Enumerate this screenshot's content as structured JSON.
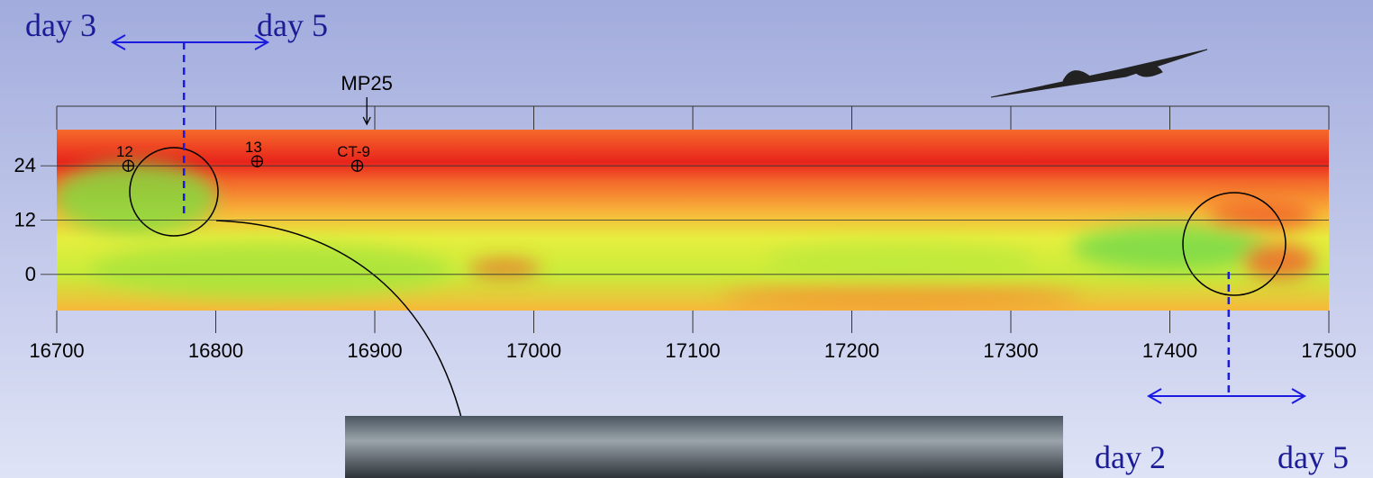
{
  "chart_data": {
    "type": "heatmap",
    "xlim": [
      16700,
      17500
    ],
    "xticks": [
      16700,
      16800,
      16900,
      17000,
      17100,
      17200,
      17300,
      17400,
      17500
    ],
    "ylim": [
      -8,
      32
    ],
    "yticks": [
      0,
      12,
      24
    ],
    "markers": [
      {
        "label": "12",
        "x": 16745,
        "y": 24
      },
      {
        "label": "13",
        "x": 16826,
        "y": 25
      },
      {
        "label": "CT-9",
        "x": 16889,
        "y": 24
      }
    ],
    "top_label": {
      "text": "MP25",
      "x": 16895
    },
    "ranges": [
      {
        "start_label": "day 3",
        "end_label": "day 5",
        "x": 16780
      },
      {
        "start_label": "day 2",
        "end_label": "day 5",
        "x": 17437
      }
    ]
  }
}
